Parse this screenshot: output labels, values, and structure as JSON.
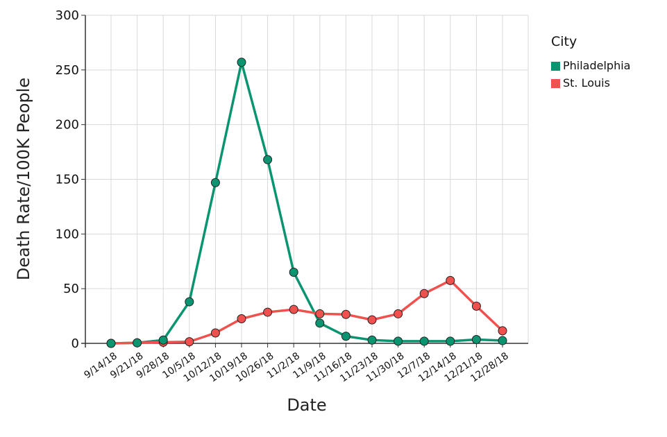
{
  "chart_data": {
    "type": "line",
    "xlabel": "Date",
    "ylabel": "Death Rate/100K People",
    "ylim": [
      0,
      300
    ],
    "yticks": [
      0,
      50,
      100,
      150,
      200,
      250,
      300
    ],
    "grid": true,
    "legend": {
      "title": "City",
      "position": "right"
    },
    "categories": [
      "9/14/18",
      "9/21/18",
      "9/28/18",
      "10/5/18",
      "10/12/18",
      "10/19/18",
      "10/26/18",
      "11/2/18",
      "11/9/18",
      "11/16/18",
      "11/23/18",
      "11/30/18",
      "12/7/18",
      "12/14/18",
      "12/21/18",
      "12/28/18"
    ],
    "series": [
      {
        "name": "Philadelphia",
        "color": "#0a9470",
        "values": [
          0,
          0.5,
          3,
          38,
          147,
          257,
          168,
          65,
          18.5,
          6.5,
          3,
          2,
          2,
          2,
          3.5,
          2.5
        ]
      },
      {
        "name": "St. Louis",
        "color": "#f0504e",
        "values": [
          0,
          0.5,
          1,
          1.5,
          9.5,
          22.5,
          28.5,
          31,
          27,
          26.5,
          21.5,
          27,
          45.5,
          57.5,
          34,
          11.5
        ]
      }
    ]
  }
}
